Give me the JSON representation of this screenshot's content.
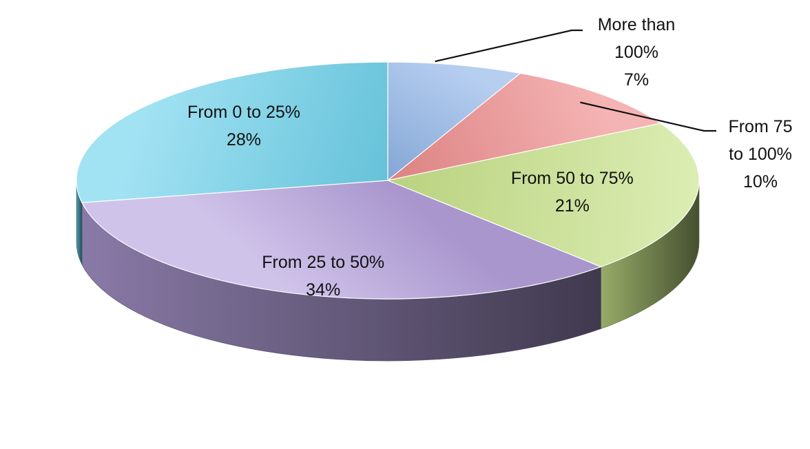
{
  "chart_data": {
    "type": "pie",
    "title": "",
    "style": "3d-tilted",
    "slices": [
      {
        "label": [
          "More than",
          "100%"
        ],
        "value": 7,
        "value_label": "7%",
        "color": "#8fb4e8",
        "label_placement": "outside-leader"
      },
      {
        "label": [
          "From 75",
          "to 100%"
        ],
        "value": 10,
        "value_label": "10%",
        "color": "#ef8c8c",
        "label_placement": "outside-leader"
      },
      {
        "label": [
          "From 50 to 75%"
        ],
        "value": 21,
        "value_label": "21%",
        "color": "#c9e48a",
        "label_placement": "inside"
      },
      {
        "label": [
          "From 25 to 50%"
        ],
        "value": 34,
        "value_label": "34%",
        "color": "#b7a3df",
        "label_placement": "inside"
      },
      {
        "label": [
          "From 0 to 25%"
        ],
        "value": 28,
        "value_label": "28%",
        "color": "#6ed3ec",
        "label_placement": "inside"
      }
    ],
    "legend": "none"
  }
}
